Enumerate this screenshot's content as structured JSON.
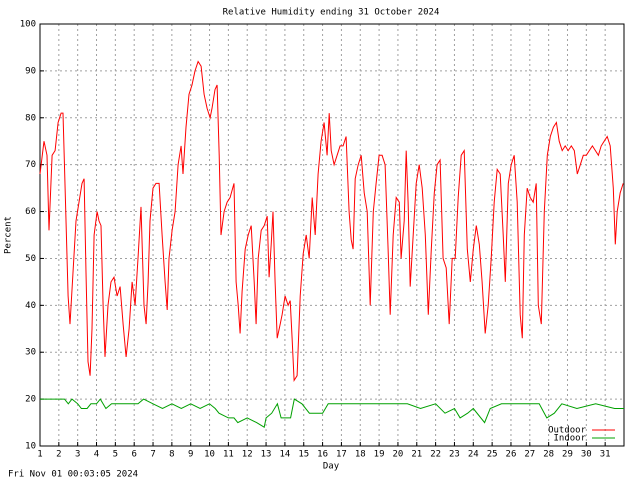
{
  "chart_data": {
    "type": "line",
    "title": "Relative Humidity ending 31 October 2024",
    "x_label": "Day",
    "y_label": "Percent",
    "footer": "Fri Nov 01 00:03:05 2024",
    "xlim": [
      1,
      32
    ],
    "xticks": [
      1,
      2,
      3,
      4,
      5,
      6,
      7,
      8,
      9,
      10,
      11,
      12,
      13,
      14,
      15,
      16,
      17,
      18,
      19,
      20,
      21,
      22,
      23,
      24,
      25,
      26,
      27,
      28,
      29,
      30,
      31
    ],
    "ylim": [
      10,
      100
    ],
    "yticks": [
      10,
      20,
      30,
      40,
      50,
      60,
      70,
      80,
      90,
      100
    ],
    "grid": true,
    "legend": "bottom-right",
    "series": [
      {
        "name": "Outdoor",
        "color": "#ff0000",
        "x": [
          1.0,
          1.21,
          1.37,
          1.48,
          1.64,
          1.8,
          1.96,
          2.12,
          2.22,
          2.33,
          2.49,
          2.59,
          2.75,
          2.91,
          3.07,
          3.23,
          3.34,
          3.44,
          3.55,
          3.66,
          3.76,
          3.87,
          4.03,
          4.13,
          4.24,
          4.35,
          4.45,
          4.61,
          4.77,
          4.93,
          5.09,
          5.25,
          5.41,
          5.57,
          5.73,
          5.89,
          6.05,
          6.2,
          6.36,
          6.52,
          6.63,
          6.74,
          6.84,
          7.0,
          7.16,
          7.32,
          7.48,
          7.64,
          7.75,
          7.85,
          8.01,
          8.17,
          8.33,
          8.49,
          8.59,
          8.75,
          8.91,
          9.07,
          9.23,
          9.39,
          9.55,
          9.71,
          9.87,
          10.03,
          10.13,
          10.29,
          10.4,
          10.51,
          10.61,
          10.77,
          10.93,
          11.09,
          11.3,
          11.41,
          11.52,
          11.62,
          11.73,
          11.89,
          12.05,
          12.21,
          12.37,
          12.47,
          12.58,
          12.74,
          12.9,
          13.06,
          13.16,
          13.27,
          13.37,
          13.48,
          13.59,
          13.75,
          13.85,
          14.01,
          14.17,
          14.28,
          14.38,
          14.49,
          14.65,
          14.81,
          14.97,
          15.13,
          15.29,
          15.45,
          15.61,
          15.76,
          15.92,
          16.08,
          16.24,
          16.35,
          16.46,
          16.61,
          16.77,
          16.93,
          17.09,
          17.25,
          17.41,
          17.52,
          17.62,
          17.73,
          17.89,
          18.05,
          18.21,
          18.37,
          18.53,
          18.69,
          18.84,
          19.0,
          19.16,
          19.32,
          19.48,
          19.59,
          19.75,
          19.91,
          20.07,
          20.17,
          20.33,
          20.44,
          20.54,
          20.65,
          20.81,
          20.97,
          21.13,
          21.29,
          21.45,
          21.61,
          21.77,
          21.93,
          22.08,
          22.24,
          22.4,
          22.56,
          22.72,
          22.88,
          23.04,
          23.2,
          23.36,
          23.52,
          23.68,
          23.84,
          24.0,
          24.16,
          24.32,
          24.47,
          24.63,
          24.79,
          24.95,
          25.11,
          25.27,
          25.43,
          25.59,
          25.7,
          25.86,
          26.01,
          26.17,
          26.33,
          26.49,
          26.6,
          26.71,
          26.86,
          27.02,
          27.18,
          27.34,
          27.45,
          27.61,
          27.77,
          27.93,
          28.09,
          28.25,
          28.41,
          28.56,
          28.72,
          28.88,
          29.04,
          29.2,
          29.36,
          29.52,
          29.68,
          29.84,
          30.0,
          30.16,
          30.32,
          30.48,
          30.64,
          30.79,
          30.95,
          31.11,
          31.27,
          31.43,
          31.54,
          31.64,
          31.8,
          31.96
        ],
        "values": [
          68,
          75,
          72,
          56,
          72,
          73,
          79,
          81,
          81,
          65,
          42,
          36,
          47,
          58,
          62,
          66,
          67,
          47,
          28,
          25,
          35,
          55,
          60,
          58,
          57,
          40,
          29,
          40,
          45,
          46,
          42,
          44,
          36,
          29,
          35,
          45,
          40,
          50,
          61,
          40,
          36,
          45,
          58,
          65,
          66,
          66,
          55,
          45,
          39,
          50,
          56,
          60,
          70,
          74,
          68,
          78,
          85,
          87,
          90,
          92,
          91,
          85,
          82,
          80,
          82,
          86,
          87,
          72,
          55,
          60,
          62,
          63,
          66,
          45,
          40,
          34,
          43,
          52,
          55,
          57,
          45,
          36,
          50,
          56,
          57,
          59,
          46,
          53,
          60,
          45,
          33,
          36,
          38,
          42,
          40,
          41,
          33,
          24,
          25,
          42,
          51,
          55,
          50,
          63,
          55,
          68,
          75,
          79,
          72,
          81,
          73,
          70,
          72,
          74,
          74,
          76,
          60,
          54,
          52,
          67,
          70,
          72,
          64,
          60,
          40,
          60,
          66,
          72,
          72,
          70,
          52,
          38,
          55,
          63,
          62,
          50,
          58,
          73,
          62,
          44,
          55,
          66,
          70,
          65,
          55,
          38,
          52,
          64,
          70,
          71,
          50,
          48,
          36,
          50,
          50,
          63,
          72,
          73,
          52,
          45,
          52,
          57,
          53,
          45,
          34,
          40,
          50,
          62,
          69,
          68,
          55,
          45,
          66,
          70,
          72,
          62,
          38,
          33,
          55,
          65,
          63,
          62,
          66,
          40,
          36,
          60,
          72,
          76,
          78,
          79,
          75,
          73,
          74,
          73,
          74,
          73,
          68,
          70,
          72,
          72,
          73,
          74,
          73,
          72,
          74,
          75,
          76,
          74,
          65,
          53,
          60,
          64,
          66
        ]
      },
      {
        "name": "Indoor",
        "color": "#00a000",
        "x": [
          1.0,
          2.3,
          2.5,
          2.7,
          3.0,
          3.2,
          3.5,
          3.7,
          4.0,
          4.2,
          4.5,
          4.8,
          5.5,
          6.2,
          6.5,
          7.0,
          7.5,
          8.0,
          8.5,
          9.0,
          9.5,
          10.0,
          10.3,
          10.5,
          11.0,
          11.3,
          11.5,
          12.0,
          12.5,
          12.9,
          13.0,
          13.3,
          13.6,
          13.8,
          14.3,
          14.5,
          14.9,
          15.3,
          16.0,
          16.3,
          17.0,
          18.0,
          19.0,
          19.5,
          20.5,
          21.2,
          22.0,
          22.5,
          23.0,
          23.3,
          23.7,
          24.0,
          24.6,
          24.9,
          25.5,
          26.5,
          27.5,
          27.9,
          28.3,
          28.7,
          29.5,
          30.5,
          31.5,
          32.0
        ],
        "values": [
          20,
          20,
          19,
          20,
          19,
          18,
          18,
          19,
          19,
          20,
          18,
          19,
          19,
          19,
          20,
          19,
          18,
          19,
          18,
          19,
          18,
          19,
          18,
          17,
          16,
          16,
          15,
          16,
          15,
          14,
          16,
          17,
          19,
          16,
          16,
          20,
          19,
          17,
          17,
          19,
          19,
          19,
          19,
          19,
          19,
          18,
          19,
          17,
          18,
          16,
          17,
          18,
          15,
          18,
          19,
          19,
          19,
          16,
          17,
          19,
          18,
          19,
          18,
          18
        ]
      }
    ]
  }
}
